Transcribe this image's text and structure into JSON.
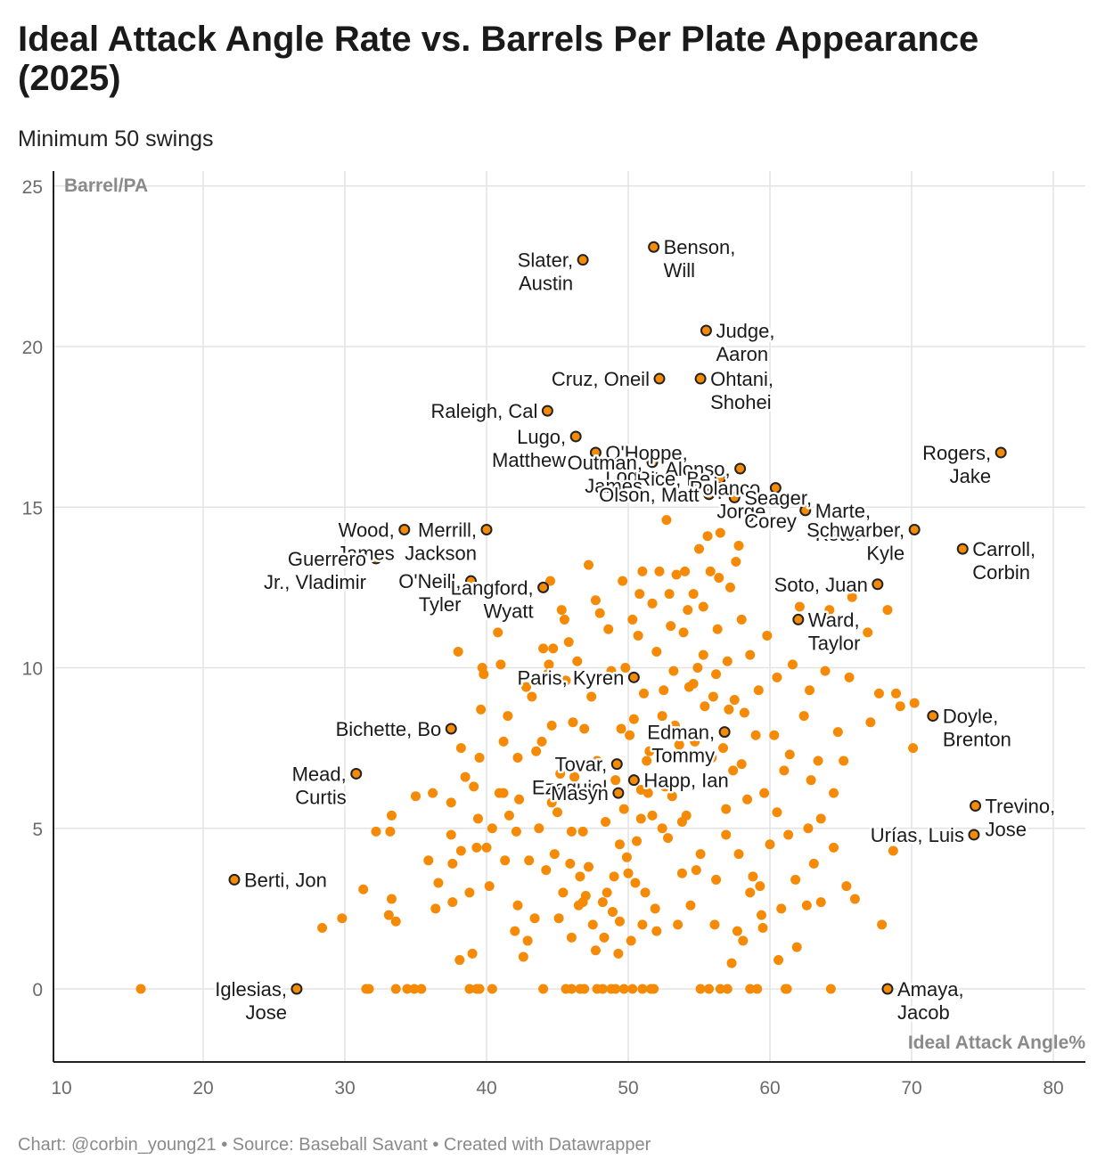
{
  "chart_data": {
    "type": "scatter",
    "title": "Ideal Attack Angle Rate vs. Barrels Per Plate Appearance (2025)",
    "subtitle": "Minimum 50 swings",
    "xlabel": "Ideal Attack Angle%",
    "ylabel": "Barrel/PA",
    "xlim": [
      10,
      82
    ],
    "ylim": [
      -2.3,
      25.5
    ],
    "xticks": [
      10,
      20,
      30,
      40,
      50,
      60,
      70,
      80
    ],
    "yticks": [
      0,
      5,
      10,
      15,
      20,
      25
    ],
    "grid": true,
    "color": "#f58a07",
    "labeled_points": [
      {
        "name": "Benson, Will",
        "lines": [
          "Benson,",
          "Will"
        ],
        "x": 51.8,
        "y": 23.1,
        "anchor": "start"
      },
      {
        "name": "Slater, Austin",
        "lines": [
          "Slater,",
          "Austin"
        ],
        "x": 46.8,
        "y": 22.7,
        "anchor": "end"
      },
      {
        "name": "Judge, Aaron",
        "lines": [
          "Judge,",
          "Aaron"
        ],
        "x": 55.5,
        "y": 20.5,
        "anchor": "start"
      },
      {
        "name": "Cruz, Oneil",
        "lines": [
          "Cruz, Oneil"
        ],
        "x": 52.2,
        "y": 19.0,
        "anchor": "end"
      },
      {
        "name": "Ohtani, Shohei",
        "lines": [
          "Ohtani,",
          "Shohei"
        ],
        "x": 55.1,
        "y": 19.0,
        "anchor": "start"
      },
      {
        "name": "Raleigh, Cal",
        "lines": [
          "Raleigh, Cal"
        ],
        "x": 44.3,
        "y": 18.0,
        "anchor": "end"
      },
      {
        "name": "Lugo, Matthew",
        "lines": [
          "Lugo,",
          "Matthew"
        ],
        "x": 46.3,
        "y": 17.2,
        "anchor": "end"
      },
      {
        "name": "O'Hoppe, Logan",
        "lines": [
          "O'Hoppe,",
          "Logan"
        ],
        "x": 47.7,
        "y": 16.7,
        "anchor": "start"
      },
      {
        "name": "Alonso, Pete",
        "lines": [
          "Alonso,",
          "P"
        ],
        "x": 57.9,
        "y": 16.2,
        "anchor": "end"
      },
      {
        "name": "Rice, Ben",
        "lines": [
          "Rice, Be"
        ],
        "x": 56.5,
        "y": 15.9,
        "anchor": "end"
      },
      {
        "name": "Polanco, Jorge",
        "lines": [
          "Polanco,",
          "Jorge"
        ],
        "x": 60.4,
        "y": 15.6,
        "anchor": "end"
      },
      {
        "name": "Outman, James",
        "lines": [
          "Outman,",
          "James"
        ],
        "x": 51.7,
        "y": 16.4,
        "anchor": "end"
      },
      {
        "name": "Olson, Matt",
        "lines": [
          "Olson, Matt"
        ],
        "x": 55.7,
        "y": 15.4,
        "anchor": "end"
      },
      {
        "name": "Seager, Corey",
        "lines": [
          "Seager,",
          "Corey"
        ],
        "x": 57.5,
        "y": 15.3,
        "anchor": "start"
      },
      {
        "name": "Marte, Ketel",
        "lines": [
          "Marte,",
          "Ketel"
        ],
        "x": 62.5,
        "y": 14.9,
        "anchor": "start"
      },
      {
        "name": "Rogers, Jake",
        "lines": [
          "Rogers,",
          "Jake"
        ],
        "x": 76.3,
        "y": 16.7,
        "anchor": "end"
      },
      {
        "name": "Schwarber, Kyle",
        "lines": [
          "Schwarber,",
          "Kyle"
        ],
        "x": 70.2,
        "y": 14.3,
        "anchor": "end"
      },
      {
        "name": "Wood, James",
        "lines": [
          "Wood,",
          "James"
        ],
        "x": 34.2,
        "y": 14.3,
        "anchor": "end"
      },
      {
        "name": "Merrill, Jackson",
        "lines": [
          "Merrill,",
          "Jackson"
        ],
        "x": 40.0,
        "y": 14.3,
        "anchor": "end"
      },
      {
        "name": "Carroll, Corbin",
        "lines": [
          "Carroll,",
          "Corbin"
        ],
        "x": 73.6,
        "y": 13.7,
        "anchor": "start"
      },
      {
        "name": "Guerrero Jr., Vladimir",
        "lines": [
          "Guerrero",
          "Jr., Vladimir"
        ],
        "x": 32.2,
        "y": 13.4,
        "anchor": "end"
      },
      {
        "name": "O'Neill, Tyler",
        "lines": [
          "O'Neill,",
          "Tyler"
        ],
        "x": 38.9,
        "y": 12.7,
        "anchor": "end"
      },
      {
        "name": "Langford, Wyatt",
        "lines": [
          "Langford,",
          "Wyatt"
        ],
        "x": 44.0,
        "y": 12.5,
        "anchor": "end"
      },
      {
        "name": "Soto, Juan",
        "lines": [
          "Soto, Juan"
        ],
        "x": 67.6,
        "y": 12.6,
        "anchor": "end"
      },
      {
        "name": "Ward, Taylor",
        "lines": [
          "Ward,",
          "Taylor"
        ],
        "x": 62.0,
        "y": 11.5,
        "anchor": "start"
      },
      {
        "name": "Paris, Kyren",
        "lines": [
          "Paris, Kyren"
        ],
        "x": 50.4,
        "y": 9.7,
        "anchor": "end"
      },
      {
        "name": "Doyle, Brenton",
        "lines": [
          "Doyle,",
          "Brenton"
        ],
        "x": 71.5,
        "y": 8.5,
        "anchor": "start"
      },
      {
        "name": "Bichette, Bo",
        "lines": [
          "Bichette, Bo"
        ],
        "x": 37.5,
        "y": 8.1,
        "anchor": "end"
      },
      {
        "name": "Edman, Tommy",
        "lines": [
          "Edman,",
          "Tommy"
        ],
        "x": 56.8,
        "y": 8.0,
        "anchor": "end"
      },
      {
        "name": "Tovar, Ezequiel",
        "lines": [
          "Tovar,",
          "Ezequiel"
        ],
        "x": 49.2,
        "y": 7.0,
        "anchor": "end"
      },
      {
        "name": "Mead, Curtis",
        "lines": [
          "Mead,",
          "Curtis"
        ],
        "x": 30.8,
        "y": 6.7,
        "anchor": "end"
      },
      {
        "name": "Happ, Ian",
        "lines": [
          "Happ, Ian"
        ],
        "x": 50.4,
        "y": 6.5,
        "anchor": "start"
      },
      {
        "name": "Winn, Masyn",
        "lines": [
          "Masyn"
        ],
        "x": 49.3,
        "y": 6.1,
        "anchor": "end"
      },
      {
        "name": "Trevino, Jose",
        "lines": [
          "Trevino,",
          "Jose"
        ],
        "x": 74.5,
        "y": 5.7,
        "anchor": "start"
      },
      {
        "name": "Urías, Luis",
        "lines": [
          "Urías, Luis"
        ],
        "x": 74.4,
        "y": 4.8,
        "anchor": "end"
      },
      {
        "name": "Berti, Jon",
        "lines": [
          "Berti, Jon"
        ],
        "x": 22.2,
        "y": 3.4,
        "anchor": "start"
      },
      {
        "name": "Iglesias, Jose",
        "lines": [
          "Iglesias,",
          "Jose"
        ],
        "x": 26.6,
        "y": 0.0,
        "anchor": "end"
      },
      {
        "name": "Amaya, Jacob",
        "lines": [
          "Amaya,",
          "Jacob"
        ],
        "x": 68.3,
        "y": 0.0,
        "anchor": "start"
      }
    ],
    "points": [
      [
        15.6,
        0
      ],
      [
        31.5,
        0
      ],
      [
        31.7,
        0
      ],
      [
        33.6,
        0
      ],
      [
        34.4,
        0
      ],
      [
        34.9,
        0
      ],
      [
        35.4,
        0
      ],
      [
        38.8,
        0
      ],
      [
        39.3,
        0
      ],
      [
        39.5,
        0
      ],
      [
        40.4,
        0
      ],
      [
        44.0,
        0
      ],
      [
        45.6,
        0
      ],
      [
        46.0,
        0
      ],
      [
        46.6,
        0
      ],
      [
        46.9,
        0
      ],
      [
        47.8,
        0
      ],
      [
        48.2,
        0
      ],
      [
        48.8,
        0
      ],
      [
        49.1,
        0
      ],
      [
        49.7,
        0
      ],
      [
        50.3,
        0
      ],
      [
        51.0,
        0
      ],
      [
        51.6,
        0
      ],
      [
        51.8,
        0
      ],
      [
        55.1,
        0
      ],
      [
        55.7,
        0
      ],
      [
        56.5,
        0
      ],
      [
        57.0,
        0
      ],
      [
        58.6,
        0
      ],
      [
        59.1,
        0
      ],
      [
        61.1,
        0
      ],
      [
        61.2,
        0
      ],
      [
        64.3,
        0
      ],
      [
        28.4,
        1.9
      ],
      [
        29.8,
        2.2
      ],
      [
        31.3,
        3.1
      ],
      [
        32.2,
        4.9
      ],
      [
        33.1,
        2.3
      ],
      [
        33.2,
        4.9
      ],
      [
        33.3,
        5.4
      ],
      [
        33.3,
        2.8
      ],
      [
        33.6,
        2.1
      ],
      [
        35.0,
        6.0
      ],
      [
        35.9,
        4.0
      ],
      [
        36.4,
        2.5
      ],
      [
        36.6,
        3.3
      ],
      [
        37.5,
        4.8
      ],
      [
        37.5,
        5.8
      ],
      [
        37.6,
        3.9
      ],
      [
        38.0,
        10.5
      ],
      [
        38.1,
        0.9
      ],
      [
        38.2,
        7.5
      ],
      [
        38.8,
        3.0
      ],
      [
        39.0,
        1.1
      ],
      [
        39.1,
        6.3
      ],
      [
        39.4,
        5.3
      ],
      [
        39.5,
        7.2
      ],
      [
        39.6,
        8.7
      ],
      [
        39.7,
        10.0
      ],
      [
        40.0,
        4.4
      ],
      [
        40.8,
        11.1
      ],
      [
        40.9,
        6.1
      ],
      [
        41.0,
        10.1
      ],
      [
        41.2,
        7.7
      ],
      [
        41.5,
        8.5
      ],
      [
        41.6,
        5.4
      ],
      [
        42.0,
        1.8
      ],
      [
        42.1,
        4.9
      ],
      [
        42.2,
        2.6
      ],
      [
        42.6,
        1.0
      ],
      [
        42.8,
        9.4
      ],
      [
        42.9,
        1.5
      ],
      [
        43.0,
        4.0
      ],
      [
        43.4,
        2.2
      ],
      [
        43.7,
        5.0
      ],
      [
        43.9,
        7.7
      ],
      [
        44.0,
        10.6
      ],
      [
        44.2,
        3.7
      ],
      [
        44.3,
        9.8
      ],
      [
        44.5,
        12.7
      ],
      [
        44.7,
        10.6
      ],
      [
        44.8,
        4.2
      ],
      [
        45.0,
        5.5
      ],
      [
        45.2,
        6.2
      ],
      [
        45.3,
        11.8
      ],
      [
        45.4,
        3.0
      ],
      [
        45.6,
        9.6
      ],
      [
        45.8,
        10.8
      ],
      [
        46.0,
        1.6
      ],
      [
        46.1,
        8.3
      ],
      [
        46.2,
        6.6
      ],
      [
        46.5,
        2.6
      ],
      [
        46.6,
        3.5
      ],
      [
        46.8,
        4.9
      ],
      [
        46.9,
        8.1
      ],
      [
        47.0,
        2.9
      ],
      [
        47.2,
        13.2
      ],
      [
        47.3,
        6.9
      ],
      [
        47.5,
        2.0
      ],
      [
        47.7,
        12.1
      ],
      [
        47.8,
        7.1
      ],
      [
        48.0,
        11.7
      ],
      [
        48.2,
        2.7
      ],
      [
        48.4,
        5.2
      ],
      [
        48.6,
        11.2
      ],
      [
        48.8,
        9.9
      ],
      [
        49.0,
        3.5
      ],
      [
        49.1,
        6.5
      ],
      [
        49.3,
        1.1
      ],
      [
        49.4,
        4.5
      ],
      [
        49.5,
        8.1
      ],
      [
        49.7,
        5.6
      ],
      [
        49.8,
        10.0
      ],
      [
        50.0,
        3.6
      ],
      [
        50.1,
        7.9
      ],
      [
        50.2,
        1.5
      ],
      [
        50.3,
        11.5
      ],
      [
        50.4,
        8.4
      ],
      [
        50.6,
        4.6
      ],
      [
        50.8,
        12.3
      ],
      [
        50.9,
        5.3
      ],
      [
        51.0,
        13.0
      ],
      [
        51.1,
        9.2
      ],
      [
        51.2,
        3.0
      ],
      [
        51.4,
        6.1
      ],
      [
        51.5,
        7.4
      ],
      [
        51.7,
        12.0
      ],
      [
        51.9,
        2.5
      ],
      [
        52.0,
        10.5
      ],
      [
        52.2,
        13.0
      ],
      [
        52.4,
        5.0
      ],
      [
        52.5,
        9.3
      ],
      [
        52.7,
        14.6
      ],
      [
        52.8,
        4.7
      ],
      [
        53.0,
        11.3
      ],
      [
        53.1,
        6.0
      ],
      [
        53.3,
        8.2
      ],
      [
        53.4,
        12.9
      ],
      [
        53.5,
        2.0
      ],
      [
        53.6,
        7.2
      ],
      [
        53.8,
        3.6
      ],
      [
        53.9,
        11.1
      ],
      [
        54.0,
        13.0
      ],
      [
        54.1,
        5.4
      ],
      [
        54.3,
        9.4
      ],
      [
        54.4,
        2.6
      ],
      [
        54.6,
        12.3
      ],
      [
        54.7,
        7.7
      ],
      [
        54.9,
        10.0
      ],
      [
        55.0,
        13.7
      ],
      [
        55.1,
        4.2
      ],
      [
        55.3,
        11.9
      ],
      [
        55.4,
        8.8
      ],
      [
        55.6,
        6.4
      ],
      [
        55.8,
        13.0
      ],
      [
        56.0,
        9.1
      ],
      [
        56.2,
        3.4
      ],
      [
        56.3,
        11.2
      ],
      [
        56.5,
        14.2
      ],
      [
        56.7,
        7.5
      ],
      [
        56.9,
        4.8
      ],
      [
        57.0,
        10.2
      ],
      [
        57.2,
        12.5
      ],
      [
        57.4,
        6.8
      ],
      [
        57.5,
        9.0
      ],
      [
        57.7,
        1.8
      ],
      [
        57.8,
        13.8
      ],
      [
        58.0,
        11.5
      ],
      [
        58.2,
        8.6
      ],
      [
        58.4,
        5.9
      ],
      [
        58.6,
        10.4
      ],
      [
        58.8,
        3.5
      ],
      [
        59.0,
        7.9
      ],
      [
        59.2,
        9.3
      ],
      [
        59.4,
        2.3
      ],
      [
        59.6,
        6.1
      ],
      [
        59.8,
        11.0
      ],
      [
        60.0,
        4.5
      ],
      [
        60.3,
        7.9
      ],
      [
        60.5,
        9.7
      ],
      [
        60.8,
        2.5
      ],
      [
        61.0,
        6.8
      ],
      [
        61.3,
        4.8
      ],
      [
        61.6,
        10.1
      ],
      [
        61.9,
        1.3
      ],
      [
        62.1,
        11.9
      ],
      [
        62.4,
        8.5
      ],
      [
        62.6,
        2.6
      ],
      [
        62.9,
        6.5
      ],
      [
        63.1,
        3.9
      ],
      [
        63.4,
        7.1
      ],
      [
        63.6,
        5.3
      ],
      [
        63.9,
        9.9
      ],
      [
        64.2,
        11.8
      ],
      [
        64.5,
        6.1
      ],
      [
        64.8,
        8.0
      ],
      [
        65.2,
        7.1
      ],
      [
        65.6,
        9.7
      ],
      [
        65.8,
        12.2
      ],
      [
        66.0,
        2.8
      ],
      [
        66.9,
        11.1
      ],
      [
        67.1,
        8.3
      ],
      [
        67.7,
        9.2
      ],
      [
        67.9,
        2.0
      ],
      [
        68.1,
        4.8
      ],
      [
        68.3,
        11.8
      ],
      [
        68.7,
        4.3
      ],
      [
        68.9,
        9.2
      ],
      [
        69.2,
        8.8
      ],
      [
        70.1,
        7.5
      ],
      [
        70.2,
        8.9
      ],
      [
        52.0,
        1.8
      ],
      [
        51.0,
        2.0
      ],
      [
        48.5,
        3.0
      ],
      [
        47.2,
        3.8
      ],
      [
        46.0,
        4.9
      ],
      [
        45.2,
        6.7
      ],
      [
        44.6,
        8.2
      ],
      [
        43.5,
        7.4
      ],
      [
        42.3,
        5.9
      ],
      [
        41.3,
        4.0
      ],
      [
        40.2,
        3.2
      ],
      [
        39.8,
        9.8
      ],
      [
        38.5,
        6.6
      ],
      [
        36.2,
        6.1
      ],
      [
        53.8,
        5.2
      ],
      [
        54.8,
        3.7
      ],
      [
        56.1,
        2.0
      ],
      [
        57.3,
        0.8
      ],
      [
        58.1,
        1.5
      ],
      [
        59.3,
        3.2
      ],
      [
        60.5,
        5.5
      ],
      [
        61.4,
        7.3
      ],
      [
        62.8,
        9.3
      ],
      [
        63.7,
        11.4
      ],
      [
        55.3,
        10.4
      ],
      [
        54.2,
        11.8
      ],
      [
        53.2,
        9.9
      ],
      [
        52.4,
        8.5
      ],
      [
        51.3,
        7.1
      ],
      [
        50.9,
        6.2
      ],
      [
        49.9,
        4.1
      ],
      [
        48.9,
        2.4
      ],
      [
        47.7,
        1.2
      ],
      [
        46.8,
        2.7
      ],
      [
        45.9,
        3.9
      ],
      [
        45.1,
        2.2
      ],
      [
        44.6,
        5.8
      ],
      [
        50.7,
        11.0
      ],
      [
        49.6,
        12.7
      ],
      [
        52.9,
        12.3
      ],
      [
        56.4,
        12.8
      ],
      [
        57.6,
        13.3
      ],
      [
        55.6,
        14.1
      ],
      [
        54.6,
        9.5
      ],
      [
        55.9,
        7.2
      ],
      [
        56.9,
        5.6
      ],
      [
        57.8,
        4.2
      ],
      [
        58.6,
        3.0
      ],
      [
        59.5,
        1.9
      ],
      [
        60.6,
        0.9
      ],
      [
        61.8,
        3.4
      ],
      [
        62.7,
        5.0
      ],
      [
        63.6,
        2.7
      ],
      [
        64.5,
        4.4
      ],
      [
        65.4,
        3.2
      ],
      [
        58.0,
        7.0
      ],
      [
        57.1,
        8.7
      ],
      [
        56.2,
        9.8
      ],
      [
        53.6,
        7.6
      ],
      [
        52.6,
        6.3
      ],
      [
        51.7,
        5.4
      ],
      [
        50.5,
        3.3
      ],
      [
        49.4,
        2.1
      ],
      [
        48.3,
        1.6
      ],
      [
        47.4,
        9.1
      ],
      [
        46.4,
        10.2
      ],
      [
        45.5,
        11.5
      ],
      [
        44.4,
        10.1
      ],
      [
        43.2,
        9.1
      ],
      [
        42.2,
        7.2
      ],
      [
        41.2,
        6.1
      ],
      [
        40.4,
        5.0
      ],
      [
        39.3,
        4.4
      ],
      [
        38.2,
        4.3
      ],
      [
        37.6,
        2.7
      ]
    ]
  },
  "footer": {
    "text": "Chart: @corbin_young21 • Source: Baseball Savant • Created with Datawrapper"
  }
}
